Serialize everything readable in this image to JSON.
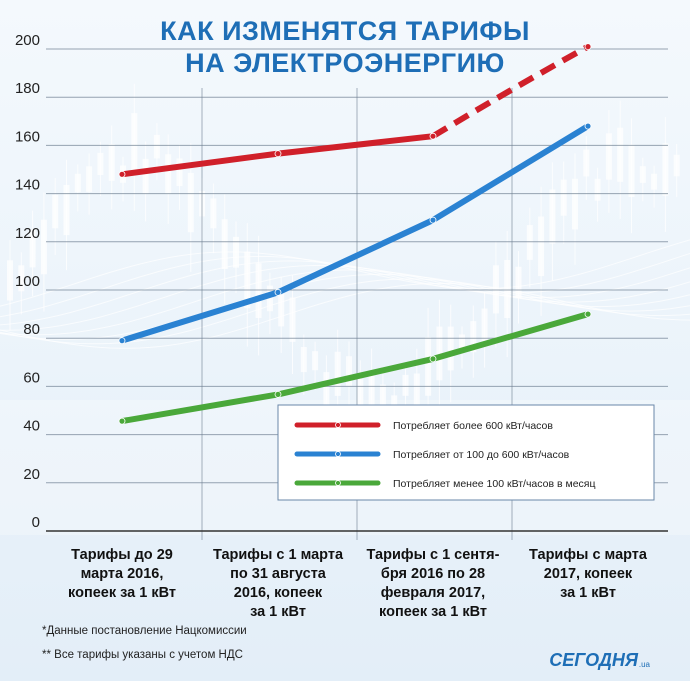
{
  "title_line_1": "КАК ИЗМЕНЯТСЯ ТАРИФЫ",
  "title_line_2": "НА ЭЛЕКТРОЭНЕРГИЮ",
  "chart_data": {
    "type": "line",
    "categories": [
      "Тарифы до 29 марта 2016, копеек за 1 кВт",
      "Тарифы с 1 марта по 31 августа 2016, копеек за 1 кВт",
      "Тарифы с 1 сентября 2016 по 28 февраля 2017, копеек за 1 кВт",
      "Тарифы с марта 2017, копеек за 1 кВт"
    ],
    "category_lines": [
      [
        "Тарифы до 29",
        "марта 2016,",
        "копеек за 1 кВт"
      ],
      [
        "Тарифы с 1 марта",
        "по 31 августа",
        "2016, копеек",
        "за 1 кВт"
      ],
      [
        "Тарифы с 1 сентя-",
        "бря 2016 по 28",
        "февраля 2017,",
        "копеек за 1 кВт"
      ],
      [
        "Тарифы с марта",
        "2017, копеек",
        "за 1 кВт"
      ]
    ],
    "ylim": [
      0,
      200
    ],
    "yticks": [
      0,
      20,
      40,
      60,
      80,
      100,
      120,
      140,
      160,
      180,
      200
    ],
    "grid": true,
    "legend_position": "bottom-right",
    "series": [
      {
        "name": "Потребляет более 600 кВт/часов",
        "color": "#d0202a",
        "values": [
          148,
          156.6,
          163.8,
          201
        ],
        "dashed_last_segment": true
      },
      {
        "name": "Потребляет от 100 до 600 кВт/часов",
        "color": "#2a82d2",
        "values": [
          79,
          99,
          129,
          168
        ]
      },
      {
        "name": "Потребляет менее 100 кВт/часов в месяц",
        "color": "#4aa83a",
        "values": [
          45.6,
          56.7,
          71.4,
          90
        ]
      }
    ]
  },
  "footnotes": [
    "*Данные постановление Нацкомиссии",
    "** Все тарифы указаны с учетом НДС"
  ],
  "brand": {
    "name": "СЕГОДНЯ",
    "suffix": ".ua",
    "color": "#1e6eb6"
  }
}
